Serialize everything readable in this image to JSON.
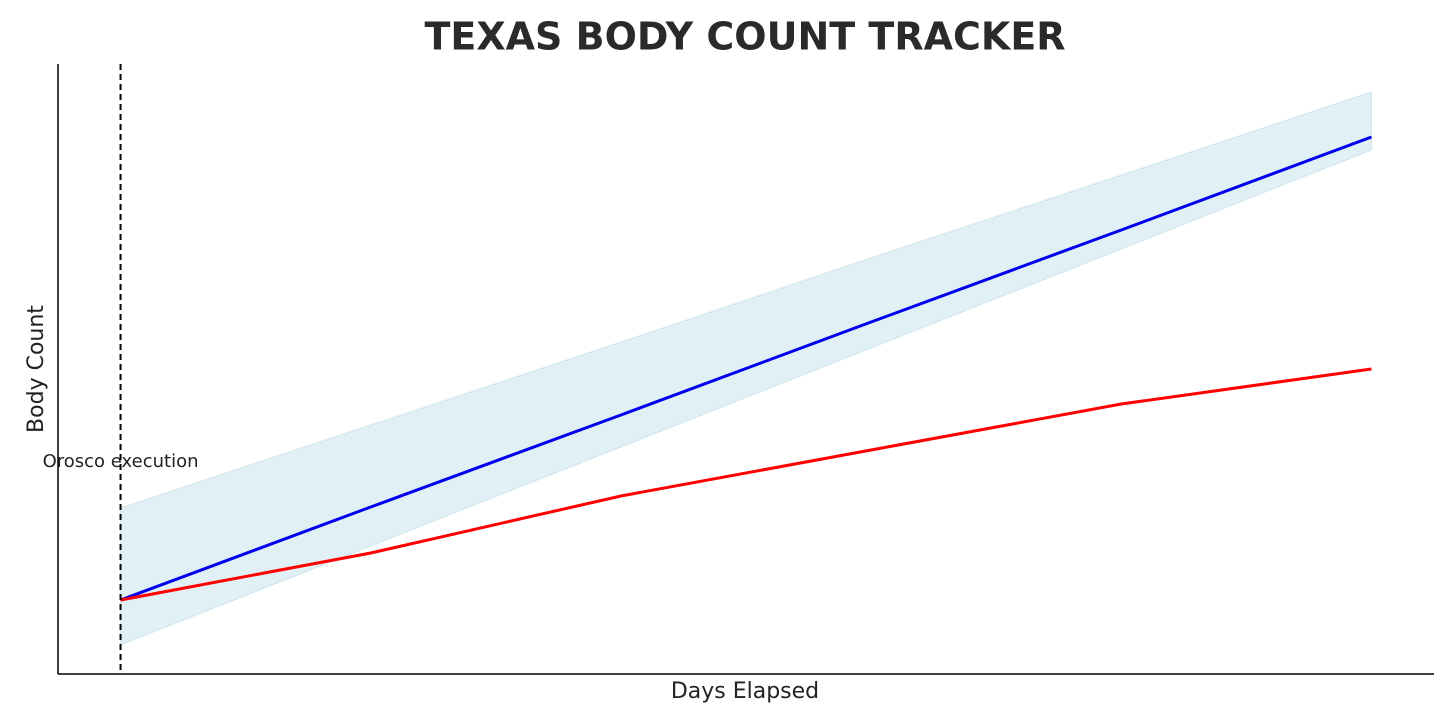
{
  "chart_data": {
    "type": "line",
    "title": "TEXAS BODY COUNT TRACKER",
    "xlabel": "Days Elapsed",
    "ylabel": "Body Count",
    "x": [
      0,
      1,
      2,
      3,
      4,
      5
    ],
    "xlim": [
      -0.25,
      5.25
    ],
    "ylim": [
      0,
      61
    ],
    "series": [
      {
        "color": "#0000ee",
        "values": [
          7.4,
          16.7,
          25.9,
          35.2,
          44.4,
          53.7
        ]
      },
      {
        "color": "#ff0000",
        "values": [
          7.4,
          12.1,
          17.8,
          22.4,
          27.0,
          30.5
        ]
      }
    ],
    "band": {
      "color": "#add8e6",
      "lower": [
        2.9,
        12.8,
        22.7,
        32.6,
        42.5,
        52.4
      ],
      "upper": [
        16.6,
        24.9,
        33.2,
        41.6,
        49.9,
        58.2
      ]
    },
    "annotation": {
      "text": "Orosco execution",
      "x": 0
    }
  }
}
